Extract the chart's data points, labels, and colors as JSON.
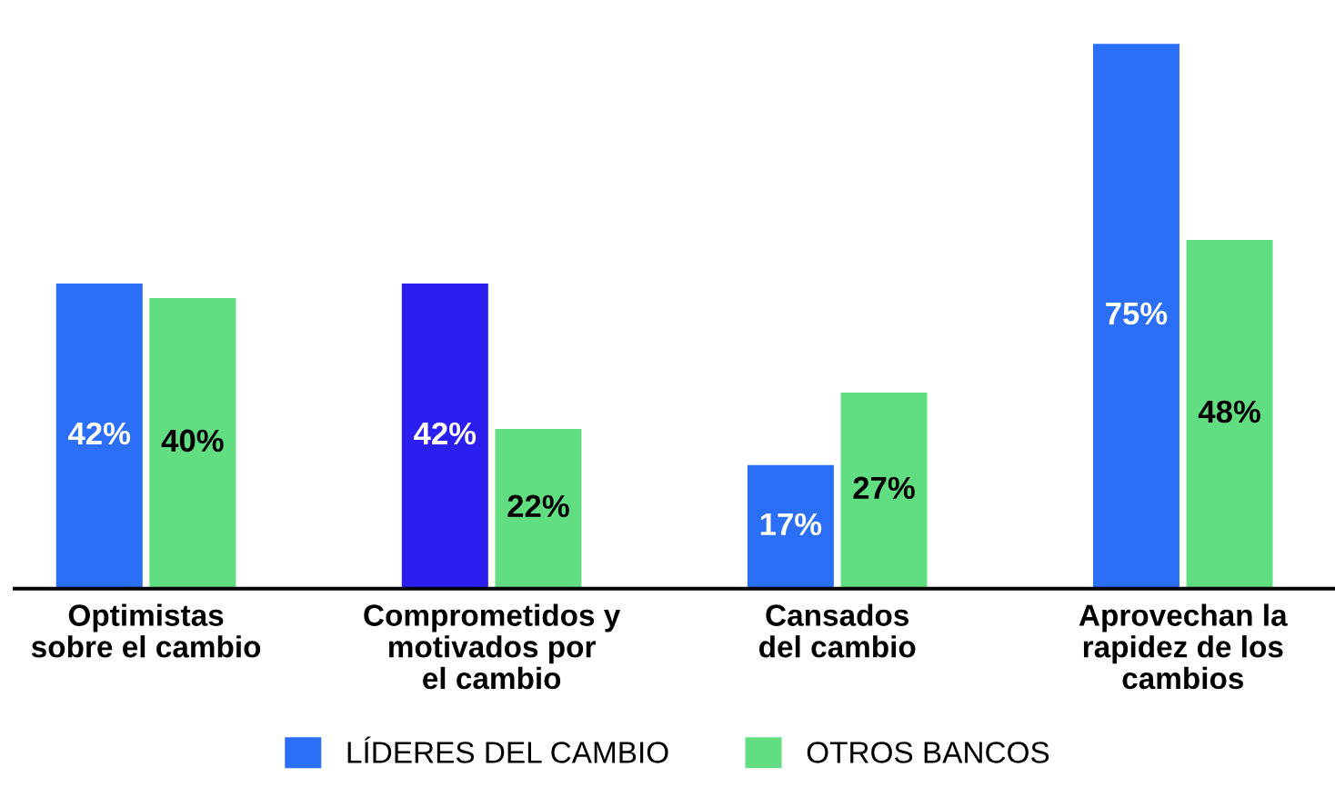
{
  "chart_data": {
    "type": "bar",
    "categories": [
      "Optimistas\nsobre el cambio",
      "Comprometidos y\nmotivados por\nel cambio",
      "Cansados\ndel cambio",
      "Aprovechan la\nrapidez de los\ncambios"
    ],
    "series": [
      {
        "name": "LÍDERES DEL CAMBIO",
        "color": "#2a6ff5",
        "colors": [
          "#2a6ff5",
          "#2b1ff0",
          "#2a6ff5",
          "#2a6ff5"
        ],
        "values": [
          42,
          42,
          17,
          75
        ],
        "value_labels": [
          "42%",
          "42%",
          "17%",
          "75%"
        ]
      },
      {
        "name": "OTROS BANCOS",
        "color": "#62de82",
        "values": [
          40,
          22,
          27,
          48
        ],
        "value_labels": [
          "40%",
          "22%",
          "27%",
          "48%"
        ]
      }
    ],
    "legend": "bottom",
    "grid": false
  }
}
